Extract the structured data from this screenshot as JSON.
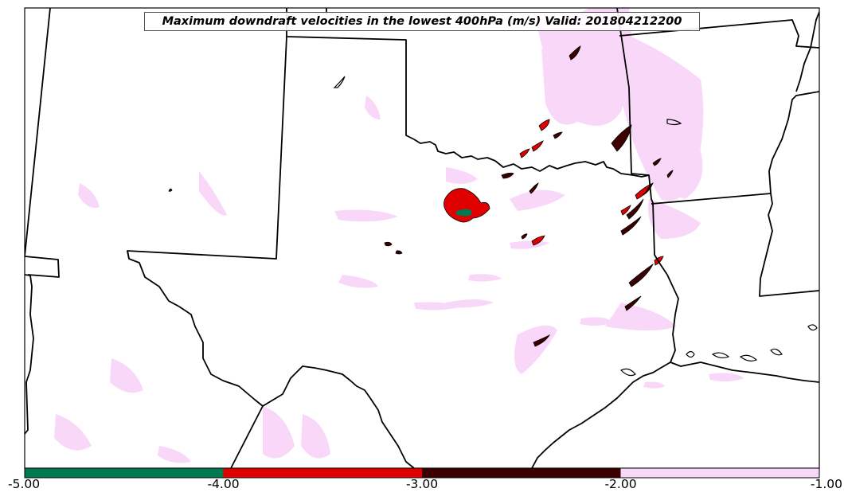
{
  "title": "Maximum downdraft velocities in the lowest 400hPa (m/s) Valid: 201804212200",
  "colorbar": {
    "ticks": [
      "-5.00",
      "-4.00",
      "-3.00",
      "-2.00",
      "-1.00"
    ],
    "bins": [
      {
        "from": -5,
        "to": -4,
        "color": "#007a50"
      },
      {
        "from": -4,
        "to": -3,
        "color": "#e10000"
      },
      {
        "from": -3,
        "to": -2,
        "color": "#3d0000"
      },
      {
        "from": -2,
        "to": -1,
        "color": "#f9d7f8"
      }
    ]
  },
  "colors": {
    "very_light": "#f9d7f8",
    "dark": "#3d0000",
    "red": "#e10000",
    "green": "#007a50",
    "outline": "#000000"
  }
}
